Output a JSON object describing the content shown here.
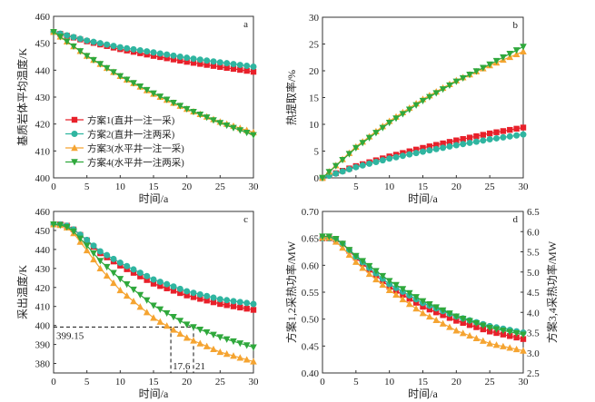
{
  "colors": {
    "s1": "#e8202a",
    "s2": "#2fb5a0",
    "s3": "#f5a431",
    "s4": "#2fa83c"
  },
  "legend": [
    {
      "label": "方案1(直井一注一采)",
      "marker": "square",
      "color_key": "s1"
    },
    {
      "label": "方案2(直井一注两采)",
      "marker": "circle",
      "color_key": "s2"
    },
    {
      "label": "方案3(水平井一注一采)",
      "marker": "triangle-up",
      "color_key": "s3"
    },
    {
      "label": "方案4(水平井一注两采)",
      "marker": "triangle-down",
      "color_key": "s4"
    }
  ],
  "chart_data": [
    {
      "panel": "a",
      "type": "line",
      "xlabel": "时间/a",
      "ylabel": "基质岩体平均温度/K",
      "xlim": [
        0,
        30
      ],
      "ylim": [
        400,
        460
      ],
      "xticks": [
        0,
        5,
        10,
        15,
        20,
        25,
        30
      ],
      "yticks": [
        400,
        410,
        420,
        430,
        440,
        450,
        460
      ],
      "legend_position": "lower-left",
      "x": [
        0,
        5,
        10,
        15,
        20,
        25,
        30
      ],
      "series": [
        {
          "name": "方案1(直井一注一采)",
          "values": [
            454.2,
            450.7,
            447.8,
            445.3,
            443.1,
            441.2,
            439.4
          ]
        },
        {
          "name": "方案2(直井一注两采)",
          "values": [
            454.2,
            451.0,
            448.5,
            446.6,
            444.6,
            442.9,
            441.3
          ]
        },
        {
          "name": "方案3(水平井一注一采)",
          "values": [
            454.2,
            445.3,
            437.8,
            431.2,
            425.6,
            420.8,
            416.9
          ]
        },
        {
          "name": "方案4(水平井一注两采)",
          "values": [
            454.2,
            445.3,
            437.8,
            431.4,
            425.6,
            420.4,
            415.9
          ]
        }
      ]
    },
    {
      "panel": "b",
      "type": "line",
      "xlabel": "时间/a",
      "ylabel": "热提取率/%",
      "xlim": [
        0,
        30
      ],
      "ylim": [
        0,
        30
      ],
      "xticks": [
        5,
        10,
        15,
        20,
        25,
        30
      ],
      "yticks": [
        0,
        5,
        10,
        15,
        20,
        25,
        30
      ],
      "x": [
        0,
        5,
        10,
        15,
        20,
        25,
        30
      ],
      "series": [
        {
          "name": "方案1(直井一注一采)",
          "values": [
            0,
            2.2,
            4.0,
            5.6,
            7.0,
            8.3,
            9.4
          ]
        },
        {
          "name": "方案2(直井一注两采)",
          "values": [
            0,
            2.0,
            3.6,
            4.9,
            6.1,
            7.2,
            8.1
          ]
        },
        {
          "name": "方案3(水平井一注一采)",
          "values": [
            0,
            5.8,
            10.6,
            14.7,
            18.2,
            21.0,
            23.6
          ]
        },
        {
          "name": "方案4(水平井一注两采)",
          "values": [
            0,
            5.6,
            10.3,
            14.4,
            18.0,
            21.2,
            24.5
          ]
        }
      ]
    },
    {
      "panel": "c",
      "type": "line",
      "xlabel": "时间/a",
      "ylabel": "采出温度/K",
      "xlim": [
        0,
        30
      ],
      "ylim": [
        375,
        460
      ],
      "xticks": [
        0,
        5,
        10,
        15,
        20,
        25,
        30
      ],
      "yticks": [
        380,
        390,
        400,
        410,
        420,
        430,
        440,
        450,
        460
      ],
      "x": [
        0,
        1,
        2,
        3,
        5,
        7,
        10,
        15,
        20,
        25,
        30
      ],
      "series": [
        {
          "name": "方案1(直井一注一采)",
          "values": [
            453.2,
            453.2,
            452.5,
            450.5,
            444.8,
            438.0,
            431.5,
            422.0,
            415.8,
            411.3,
            408.2
          ]
        },
        {
          "name": "方案2(直井一注两采)",
          "values": [
            453.2,
            453.2,
            452.5,
            450.5,
            445.0,
            439.0,
            433.0,
            424.2,
            418.0,
            413.8,
            411.3
          ]
        },
        {
          "name": "方案3(水平井一注一采)",
          "values": [
            453.2,
            452.8,
            451.5,
            448.5,
            439.5,
            430.0,
            418.5,
            404.0,
            393.5,
            386.0,
            381.0
          ]
        },
        {
          "name": "方案4(水平井一注两采)",
          "values": [
            453.2,
            452.8,
            451.8,
            449.5,
            442.0,
            434.0,
            424.5,
            410.5,
            400.5,
            393.8,
            388.5
          ]
        }
      ],
      "annotations": [
        {
          "text": "399.15",
          "type": "hline",
          "y": 399.15
        },
        {
          "text": "17.6",
          "type": "vline",
          "x": 17.6
        },
        {
          "text": "21",
          "type": "vline",
          "x": 21
        }
      ]
    },
    {
      "panel": "d",
      "type": "line",
      "xlabel": "时间/a",
      "ylabel": "方案1,2采热功率/MW",
      "ylabel_right": "方案3,4采热功率/MW",
      "xlim": [
        0,
        30
      ],
      "ylim": [
        0.4,
        0.7
      ],
      "ylim_right": [
        2.5,
        6.5
      ],
      "xticks": [
        0,
        5,
        10,
        15,
        20,
        25,
        30
      ],
      "yticks": [
        "0.40",
        "0.45",
        "0.50",
        "0.55",
        "0.60",
        "0.65",
        "0.70"
      ],
      "yticks_right": [
        "2.5",
        "3.0",
        "3.5",
        "4.0",
        "4.5",
        "5.0",
        "5.5",
        "6.0",
        "6.5"
      ],
      "x": [
        0,
        1,
        2,
        3,
        5,
        7,
        10,
        15,
        20,
        25,
        30
      ],
      "series": [
        {
          "name": "方案1(直井一注一采)",
          "axis": "left",
          "values": [
            0.65,
            0.65,
            0.648,
            0.64,
            0.614,
            0.592,
            0.56,
            0.523,
            0.497,
            0.477,
            0.463
          ]
        },
        {
          "name": "方案2(直井一注两采)",
          "axis": "left",
          "values": [
            0.65,
            0.65,
            0.648,
            0.64,
            0.616,
            0.595,
            0.565,
            0.53,
            0.505,
            0.487,
            0.475
          ]
        },
        {
          "name": "方案3(水平井一注一采)",
          "axis": "right",
          "values": [
            5.85,
            5.85,
            5.75,
            5.6,
            5.25,
            4.95,
            4.55,
            3.98,
            3.55,
            3.23,
            3.05
          ]
        },
        {
          "name": "方案4(水平井一注两采)",
          "axis": "right",
          "values": [
            5.88,
            5.88,
            5.82,
            5.7,
            5.4,
            5.15,
            4.78,
            4.28,
            3.9,
            3.62,
            3.45
          ]
        }
      ]
    }
  ]
}
